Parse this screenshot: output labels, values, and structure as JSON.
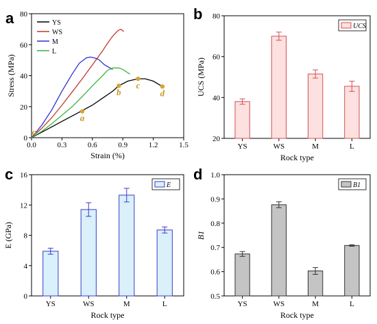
{
  "chart_data": [
    {
      "panel": "a",
      "type": "line",
      "xlabel": "Strain (%)",
      "ylabel": "Stress (MPa)",
      "xlim": [
        0,
        1.5
      ],
      "ylim": [
        0,
        80
      ],
      "xticks": [
        "0.0",
        "0.3",
        "0.6",
        "0.9",
        "1.2",
        "1.5"
      ],
      "yticks": [
        "0",
        "20",
        "40",
        "60",
        "80"
      ],
      "legend_position": "top-left",
      "series": [
        {
          "name": "YS",
          "color": "#000000",
          "x": [
            0,
            0.1,
            0.2,
            0.3,
            0.4,
            0.5,
            0.6,
            0.7,
            0.8,
            0.86,
            0.95,
            1.05,
            1.12,
            1.2,
            1.29
          ],
          "y": [
            0,
            3.5,
            7.0,
            10.5,
            14.0,
            17.5,
            21.0,
            25.5,
            30.0,
            33.5,
            36.5,
            38.0,
            38.0,
            36.5,
            33.0
          ]
        },
        {
          "name": "WS",
          "color": "#c0392b",
          "x": [
            0,
            0.1,
            0.2,
            0.3,
            0.4,
            0.5,
            0.6,
            0.7,
            0.75,
            0.8,
            0.85,
            0.88,
            0.91
          ],
          "y": [
            0,
            6.0,
            13.0,
            21.0,
            29.5,
            38.0,
            47.0,
            56.0,
            61.0,
            65.5,
            69.0,
            70.0,
            68.5
          ]
        },
        {
          "name": "M",
          "color": "#2f2fcf",
          "x": [
            0,
            0.1,
            0.2,
            0.3,
            0.4,
            0.47,
            0.54,
            0.58,
            0.62,
            0.66,
            0.72,
            0.8
          ],
          "y": [
            0,
            8.0,
            18.0,
            30.0,
            41.0,
            48.0,
            51.5,
            52.0,
            51.5,
            50.5,
            47.0,
            44.0
          ]
        },
        {
          "name": "L",
          "color": "#3cb43c",
          "x": [
            0,
            0.1,
            0.2,
            0.3,
            0.4,
            0.5,
            0.6,
            0.7,
            0.75,
            0.8,
            0.86,
            0.9,
            0.97
          ],
          "y": [
            0,
            4.0,
            9.0,
            14.5,
            20.0,
            26.5,
            33.5,
            40.0,
            43.5,
            45.0,
            45.0,
            44.0,
            41.0
          ]
        }
      ],
      "annotations": [
        {
          "label": "o",
          "x": 0.0,
          "y": 0.0
        },
        {
          "label": "a",
          "x": 0.5,
          "y": 17.0
        },
        {
          "label": "b",
          "x": 0.86,
          "y": 33.5
        },
        {
          "label": "c",
          "x": 1.05,
          "y": 38.0
        },
        {
          "label": "d",
          "x": 1.29,
          "y": 33.0
        }
      ],
      "marker_color": "#d4a43a"
    },
    {
      "panel": "b",
      "type": "bar",
      "xlabel": "Rock type",
      "ylabel": "UCS (MPa)",
      "categories": [
        "YS",
        "WS",
        "M",
        "L"
      ],
      "values": [
        38.0,
        70.0,
        51.5,
        45.5
      ],
      "errors": [
        1.3,
        2.0,
        2.0,
        2.5
      ],
      "ylim": [
        20,
        80
      ],
      "yticks": [
        "20",
        "40",
        "60",
        "80"
      ],
      "legend": [
        "UCS"
      ],
      "legend_position": "top-right",
      "fill": "#fde0e0",
      "edge": "#d05050"
    },
    {
      "panel": "c",
      "type": "bar",
      "xlabel": "Rock type",
      "ylabel": "E (GPa)",
      "categories": [
        "YS",
        "WS",
        "M",
        "L"
      ],
      "values": [
        5.9,
        11.4,
        13.3,
        8.7
      ],
      "errors": [
        0.4,
        0.9,
        0.9,
        0.4
      ],
      "ylim": [
        0,
        16
      ],
      "yticks": [
        "0",
        "4",
        "8",
        "12",
        "16"
      ],
      "legend": [
        "E"
      ],
      "legend_position": "top-right",
      "fill": "#daf0fa",
      "edge": "#3a3acc"
    },
    {
      "panel": "d",
      "type": "bar",
      "xlabel": "Rock type",
      "ylabel": "B1",
      "categories": [
        "YS",
        "WS",
        "M",
        "L"
      ],
      "values": [
        0.673,
        0.876,
        0.603,
        0.708
      ],
      "errors": [
        0.01,
        0.012,
        0.014,
        0.003
      ],
      "ylim": [
        0.5,
        1.0
      ],
      "yticks": [
        "0.5",
        "0.6",
        "0.7",
        "0.8",
        "0.9",
        "1.0"
      ],
      "legend": [
        "B1"
      ],
      "legend_position": "top-right",
      "fill": "#c4c4c4",
      "edge": "#333333"
    }
  ]
}
